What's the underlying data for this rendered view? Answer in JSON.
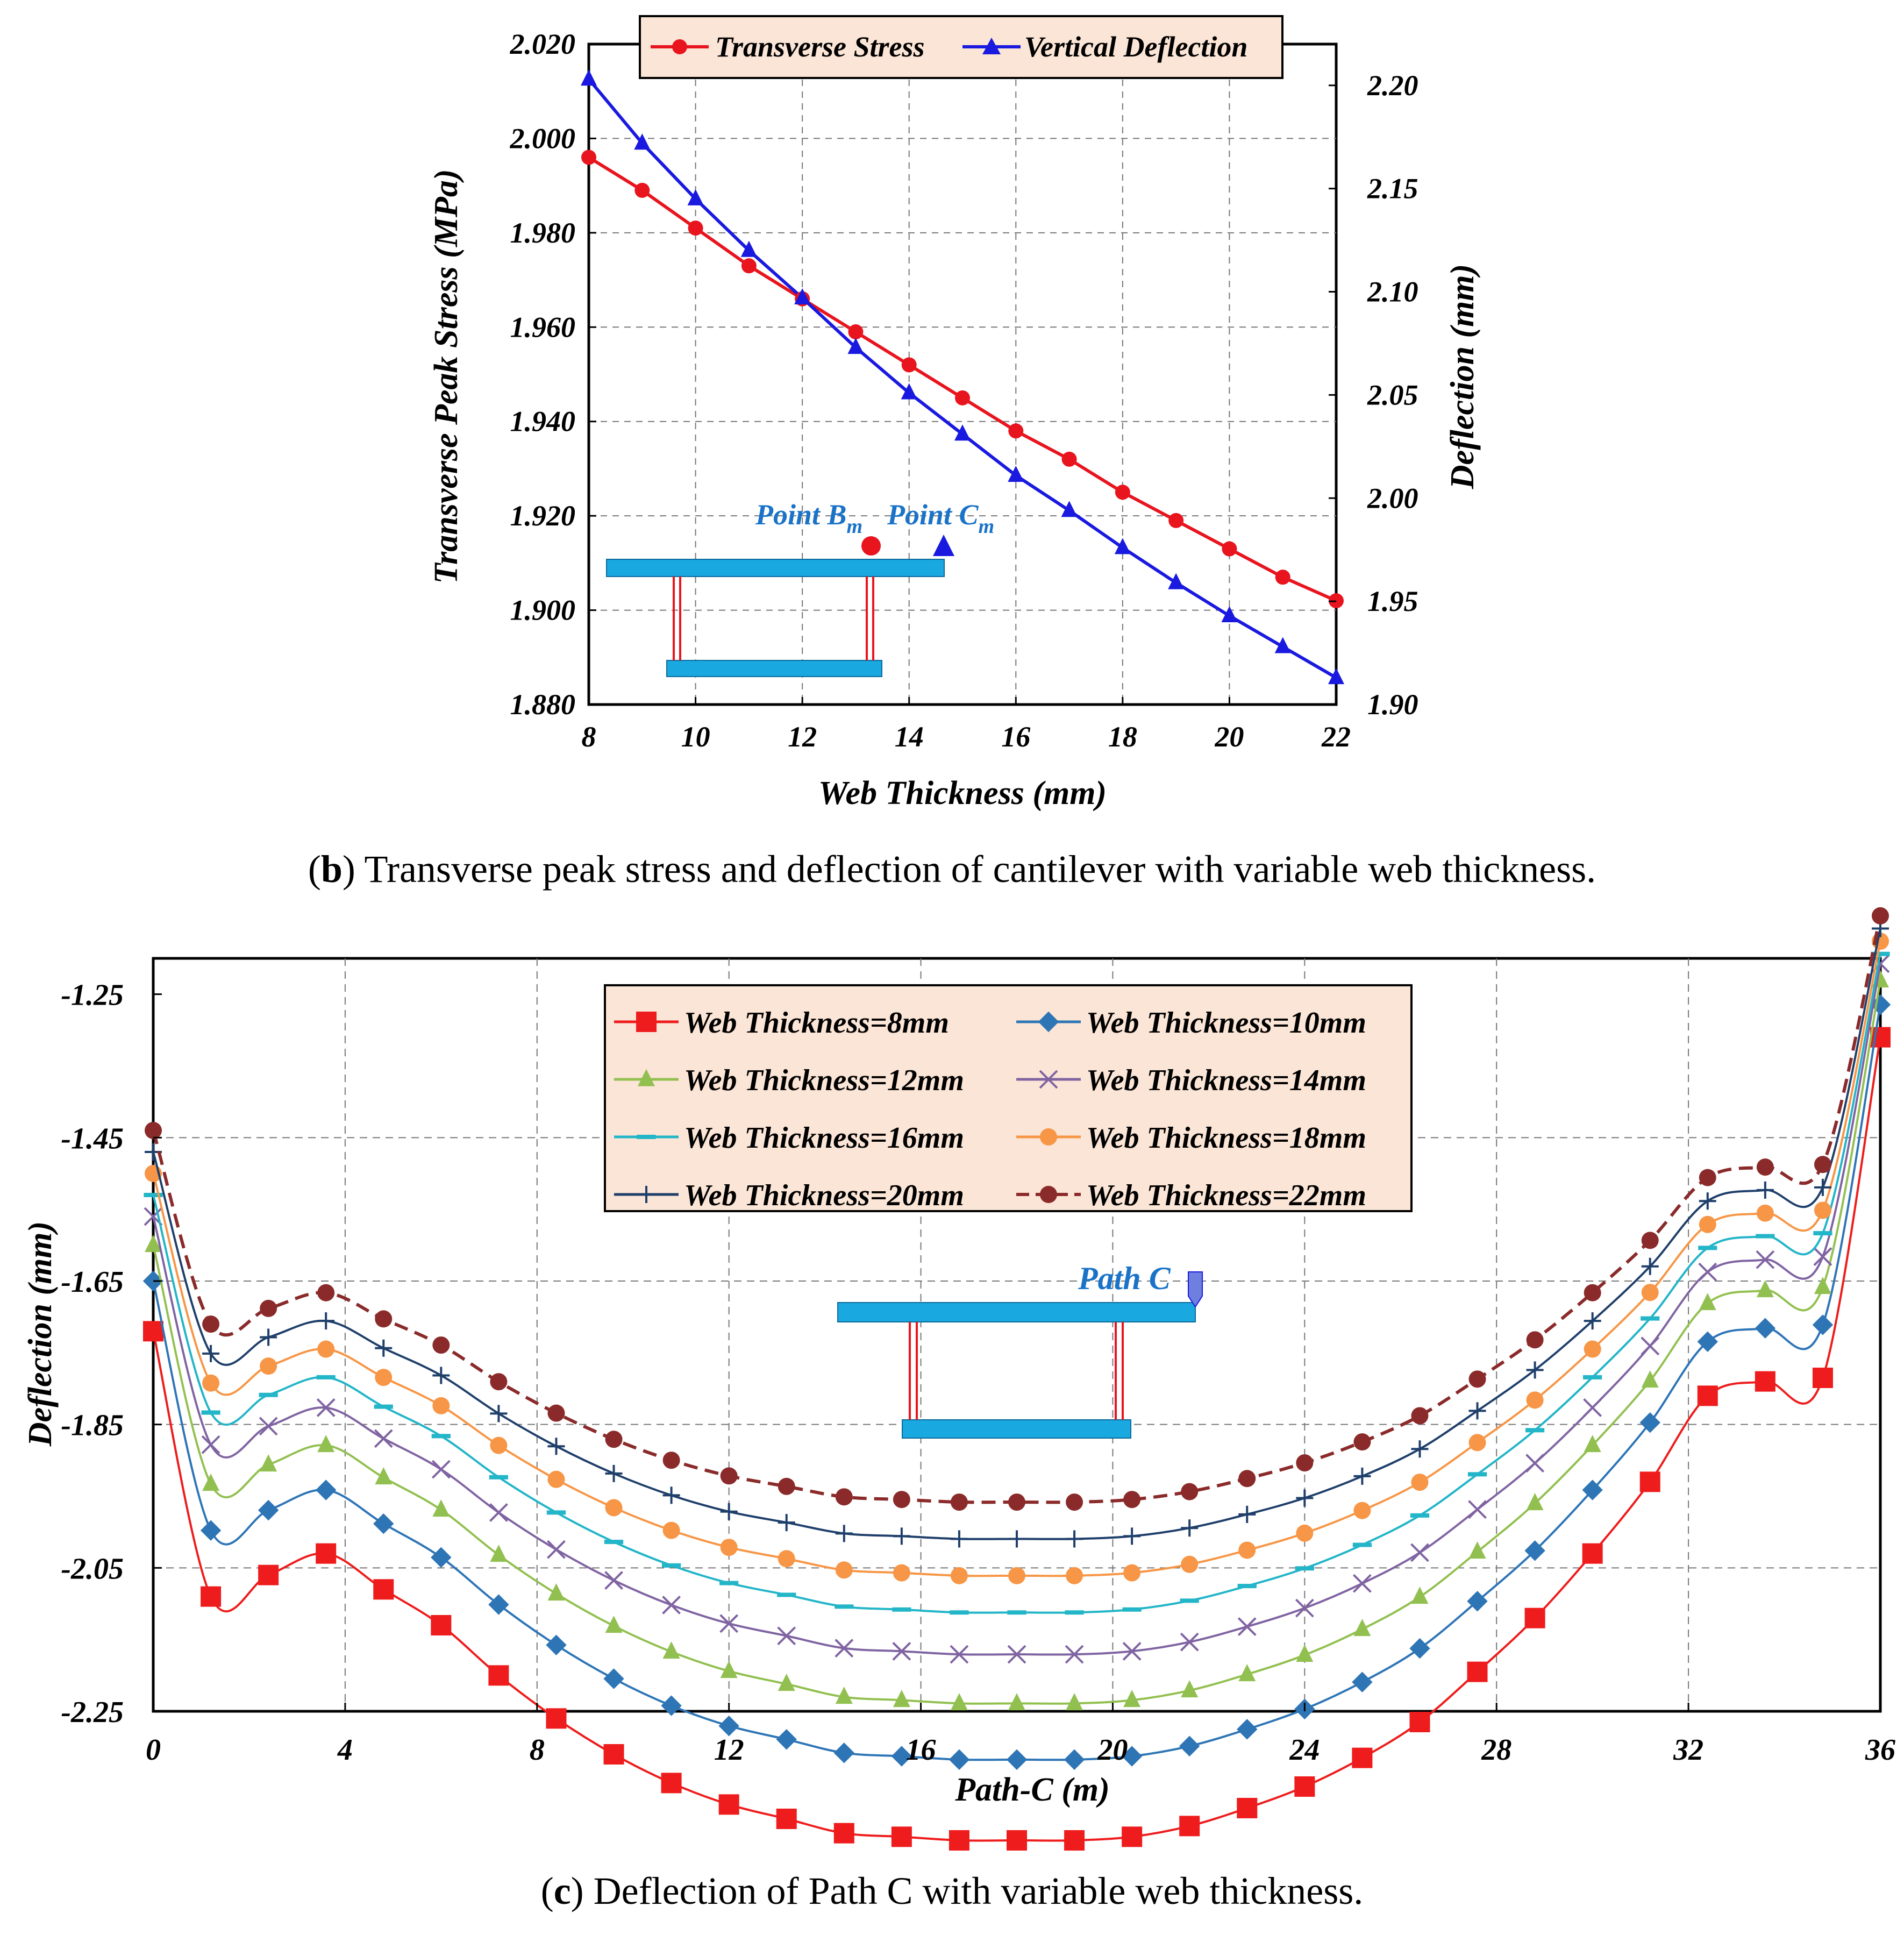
{
  "captions": {
    "b": {
      "letter": "b",
      "text": ") Transverse peak stress and deflection of cantilever with variable web thickness."
    },
    "c": {
      "letter": "c",
      "text": ") Deflection of Path C with variable web thickness."
    }
  },
  "colors": {
    "stress": "#e8141e",
    "deflection": "#1919e0",
    "inset_beam": "#1aa8e0",
    "inset_web": "#e8141e",
    "legend_bg": "#fbe5d6",
    "annotation": "#1a73c8",
    "wt8": "#ee1c1c",
    "wt10": "#2e75b6",
    "wt12": "#92c050",
    "wt14": "#8064a2",
    "wt16": "#23b5c8",
    "wt18": "#f79646",
    "wt20": "#1f3f6b",
    "wt22": "#8b2a2a"
  },
  "chart_data": [
    {
      "id": "b",
      "type": "line",
      "title": "",
      "xlabel": "Web Thickness (mm)",
      "ylabel": "Transverse Peak Stress (MPa)",
      "y2label": "Deflection (mm)",
      "xlim": [
        8,
        22
      ],
      "ylim": [
        1.88,
        2.02
      ],
      "y2lim": [
        1.9,
        2.22
      ],
      "xticks": [
        "8",
        "10",
        "12",
        "14",
        "16",
        "18",
        "20",
        "22"
      ],
      "yticks": [
        "1.880",
        "1.900",
        "1.920",
        "1.940",
        "1.960",
        "1.980",
        "2.000",
        "2.020"
      ],
      "y2ticks": [
        "1.90",
        "1.95",
        "2.00",
        "2.05",
        "2.10",
        "2.15",
        "2.20"
      ],
      "grid": true,
      "legend_position": "top",
      "x": [
        8,
        9,
        10,
        11,
        12,
        13,
        14,
        15,
        16,
        17,
        18,
        19,
        20,
        21,
        22
      ],
      "series": [
        {
          "name": "Transverse Stress",
          "axis": "left",
          "marker": "circle",
          "values": [
            1.996,
            1.989,
            1.981,
            1.973,
            1.966,
            1.959,
            1.952,
            1.945,
            1.938,
            1.932,
            1.925,
            1.919,
            1.913,
            1.907,
            1.902
          ]
        },
        {
          "name": "Vertical Deflection",
          "axis": "right",
          "marker": "triangle",
          "values": [
            2.203,
            2.172,
            2.145,
            2.12,
            2.097,
            2.073,
            2.051,
            2.031,
            2.011,
            1.994,
            1.976,
            1.959,
            1.943,
            1.928,
            1.913
          ]
        }
      ],
      "annotations": {
        "point_b": "Point B",
        "point_c": "Point C",
        "subscript": "m"
      }
    },
    {
      "id": "c",
      "type": "line",
      "title": "",
      "xlabel": "Path-C (m)",
      "ylabel": "Deflection (mm)",
      "xlim": [
        0,
        36
      ],
      "ylim": [
        -2.25,
        -1.2
      ],
      "xticks": [
        "0",
        "4",
        "8",
        "12",
        "16",
        "20",
        "24",
        "28",
        "32",
        "36"
      ],
      "yticks": [
        "-1.25",
        "-1.45",
        "-1.65",
        "-1.85",
        "-2.05",
        "-2.25"
      ],
      "grid": true,
      "legend_position": "top-center",
      "x": [
        0,
        1.2,
        2.4,
        3.6,
        4.8,
        6,
        7.2,
        8.4,
        9.6,
        10.8,
        12,
        13.2,
        14.4,
        15.6,
        16.8,
        18,
        19.2,
        20.4,
        21.6,
        22.8,
        24,
        25.2,
        26.4,
        27.6,
        28.8,
        30,
        31.2,
        32.4,
        33.6,
        34.8,
        36
      ],
      "base": [
        0,
        -0.37,
        -0.34,
        -0.31,
        -0.36,
        -0.41,
        -0.48,
        -0.54,
        -0.59,
        -0.63,
        -0.66,
        -0.68,
        -0.7,
        -0.705,
        -0.71,
        -0.71,
        -0.71,
        -0.705,
        -0.69,
        -0.665,
        -0.635,
        -0.595,
        -0.545,
        -0.475,
        -0.4,
        -0.31,
        -0.21,
        -0.09,
        -0.07,
        -0.065,
        0.41
      ],
      "series": [
        {
          "name": "Web Thickness=8mm",
          "marker": "square",
          "start": -1.72,
          "amplitude": 1.0
        },
        {
          "name": "Web Thickness=10mm",
          "marker": "diamond",
          "start": -1.65,
          "amplitude": 0.94
        },
        {
          "name": "Web Thickness=12mm",
          "marker": "triangle",
          "start": -1.6,
          "amplitude": 0.9
        },
        {
          "name": "Web Thickness=14mm",
          "marker": "x",
          "start": -1.56,
          "amplitude": 0.86
        },
        {
          "name": "Web Thickness=16mm",
          "marker": "dash",
          "start": -1.53,
          "amplitude": 0.82
        },
        {
          "name": "Web Thickness=18mm",
          "marker": "circle",
          "start": -1.5,
          "amplitude": 0.79
        },
        {
          "name": "Web Thickness=20mm",
          "marker": "plus",
          "start": -1.47,
          "amplitude": 0.76
        },
        {
          "name": "Web Thickness=22mm",
          "marker": "circle",
          "start": -1.44,
          "amplitude": 0.73,
          "dashed": true
        }
      ],
      "annotations": {
        "path_c": "Path C"
      }
    }
  ]
}
